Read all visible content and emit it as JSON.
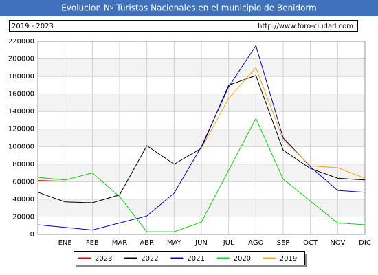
{
  "chart_data": {
    "type": "line",
    "title": "Evolucion Nº Turistas Nacionales en el municipio de Benidorm",
    "subtitle": "2019 - 2023",
    "source": "http://www.foro-ciudad.com",
    "categories": [
      null,
      "ENE",
      "FEB",
      "MAR",
      "ABR",
      "MAY",
      "JUN",
      "JUL",
      "AGO",
      "SEP",
      "OCT",
      "NOV",
      "DIC"
    ],
    "series": [
      {
        "name": "2023",
        "color": "#e00000",
        "values": [
          61500,
          60500,
          null,
          null,
          null,
          null,
          null,
          null,
          null,
          null,
          null,
          null,
          null
        ]
      },
      {
        "name": "2022",
        "color": "#000000",
        "values": [
          48000,
          37000,
          36000,
          45000,
          101000,
          80000,
          98000,
          170000,
          181000,
          96000,
          75000,
          64000,
          62000
        ]
      },
      {
        "name": "2021",
        "color": "#0000cc",
        "values": [
          11000,
          8000,
          5000,
          13000,
          21000,
          47000,
          100000,
          168000,
          215000,
          110000,
          77000,
          50000,
          48000
        ]
      },
      {
        "name": "2020",
        "color": "#00dd00",
        "values": [
          65000,
          62000,
          70000,
          43000,
          3000,
          3000,
          14000,
          73000,
          132000,
          63000,
          38000,
          13000,
          11000
        ]
      },
      {
        "name": "2019",
        "color": "#ffa500",
        "values": [
          null,
          null,
          null,
          null,
          null,
          null,
          98000,
          155000,
          190000,
          108000,
          78000,
          76000,
          64000
        ]
      }
    ],
    "ylim": [
      0,
      220000
    ],
    "yticks": [
      0,
      20000,
      40000,
      60000,
      80000,
      100000,
      120000,
      140000,
      160000,
      180000,
      200000,
      220000
    ],
    "grid": true
  }
}
